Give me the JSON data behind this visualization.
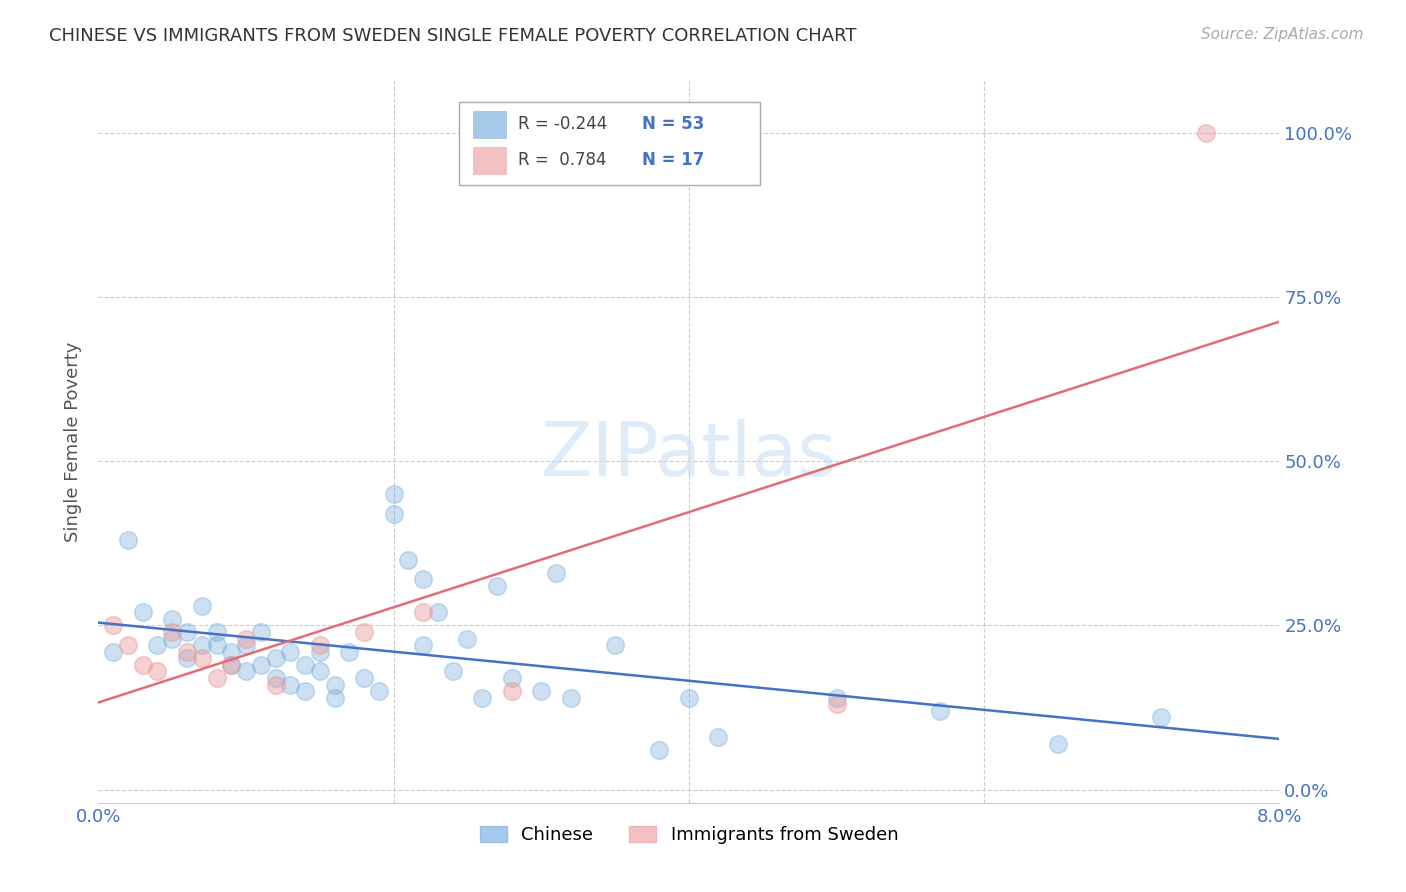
{
  "title": "CHINESE VS IMMIGRANTS FROM SWEDEN SINGLE FEMALE POVERTY CORRELATION CHART",
  "source": "Source: ZipAtlas.com",
  "ylabel": "Single Female Poverty",
  "watermark": "ZIPatlas",
  "ytick_labels": [
    "0.0%",
    "25.0%",
    "50.0%",
    "75.0%",
    "100.0%"
  ],
  "ytick_values": [
    0.0,
    0.25,
    0.5,
    0.75,
    1.0
  ],
  "xmin": 0.0,
  "xmax": 0.08,
  "ymin": -0.02,
  "ymax": 1.08,
  "chinese_color": "#6fa8dc",
  "swedish_color": "#ea9999",
  "chinese_R": -0.244,
  "chinese_N": 53,
  "swedish_R": 0.784,
  "swedish_N": 17,
  "legend_label_chinese": "Chinese",
  "legend_label_swedish": "Immigrants from Sweden",
  "chinese_x": [
    0.001,
    0.002,
    0.003,
    0.004,
    0.005,
    0.005,
    0.006,
    0.006,
    0.007,
    0.007,
    0.008,
    0.008,
    0.009,
    0.009,
    0.01,
    0.01,
    0.011,
    0.011,
    0.012,
    0.012,
    0.013,
    0.013,
    0.014,
    0.014,
    0.015,
    0.015,
    0.016,
    0.016,
    0.017,
    0.018,
    0.019,
    0.02,
    0.02,
    0.021,
    0.022,
    0.022,
    0.023,
    0.024,
    0.025,
    0.026,
    0.027,
    0.028,
    0.03,
    0.031,
    0.032,
    0.035,
    0.038,
    0.04,
    0.042,
    0.05,
    0.057,
    0.065,
    0.072
  ],
  "chinese_y": [
    0.21,
    0.38,
    0.27,
    0.22,
    0.23,
    0.26,
    0.2,
    0.24,
    0.22,
    0.28,
    0.22,
    0.24,
    0.19,
    0.21,
    0.18,
    0.22,
    0.19,
    0.24,
    0.2,
    0.17,
    0.21,
    0.16,
    0.19,
    0.15,
    0.21,
    0.18,
    0.16,
    0.14,
    0.21,
    0.17,
    0.15,
    0.45,
    0.42,
    0.35,
    0.32,
    0.22,
    0.27,
    0.18,
    0.23,
    0.14,
    0.31,
    0.17,
    0.15,
    0.33,
    0.14,
    0.22,
    0.06,
    0.14,
    0.08,
    0.14,
    0.12,
    0.07,
    0.11
  ],
  "swedish_x": [
    0.001,
    0.002,
    0.003,
    0.004,
    0.005,
    0.006,
    0.007,
    0.008,
    0.009,
    0.01,
    0.012,
    0.015,
    0.018,
    0.022,
    0.028,
    0.05,
    0.075
  ],
  "swedish_y": [
    0.25,
    0.22,
    0.19,
    0.18,
    0.24,
    0.21,
    0.2,
    0.17,
    0.19,
    0.23,
    0.16,
    0.22,
    0.24,
    0.27,
    0.15,
    0.13,
    1.0
  ],
  "blue_line_color": "#4472c4",
  "pink_line_color": "#e06c75",
  "grid_color": "#cccccc",
  "title_color": "#333333",
  "axis_label_color": "#4472c4",
  "background_color": "#ffffff"
}
